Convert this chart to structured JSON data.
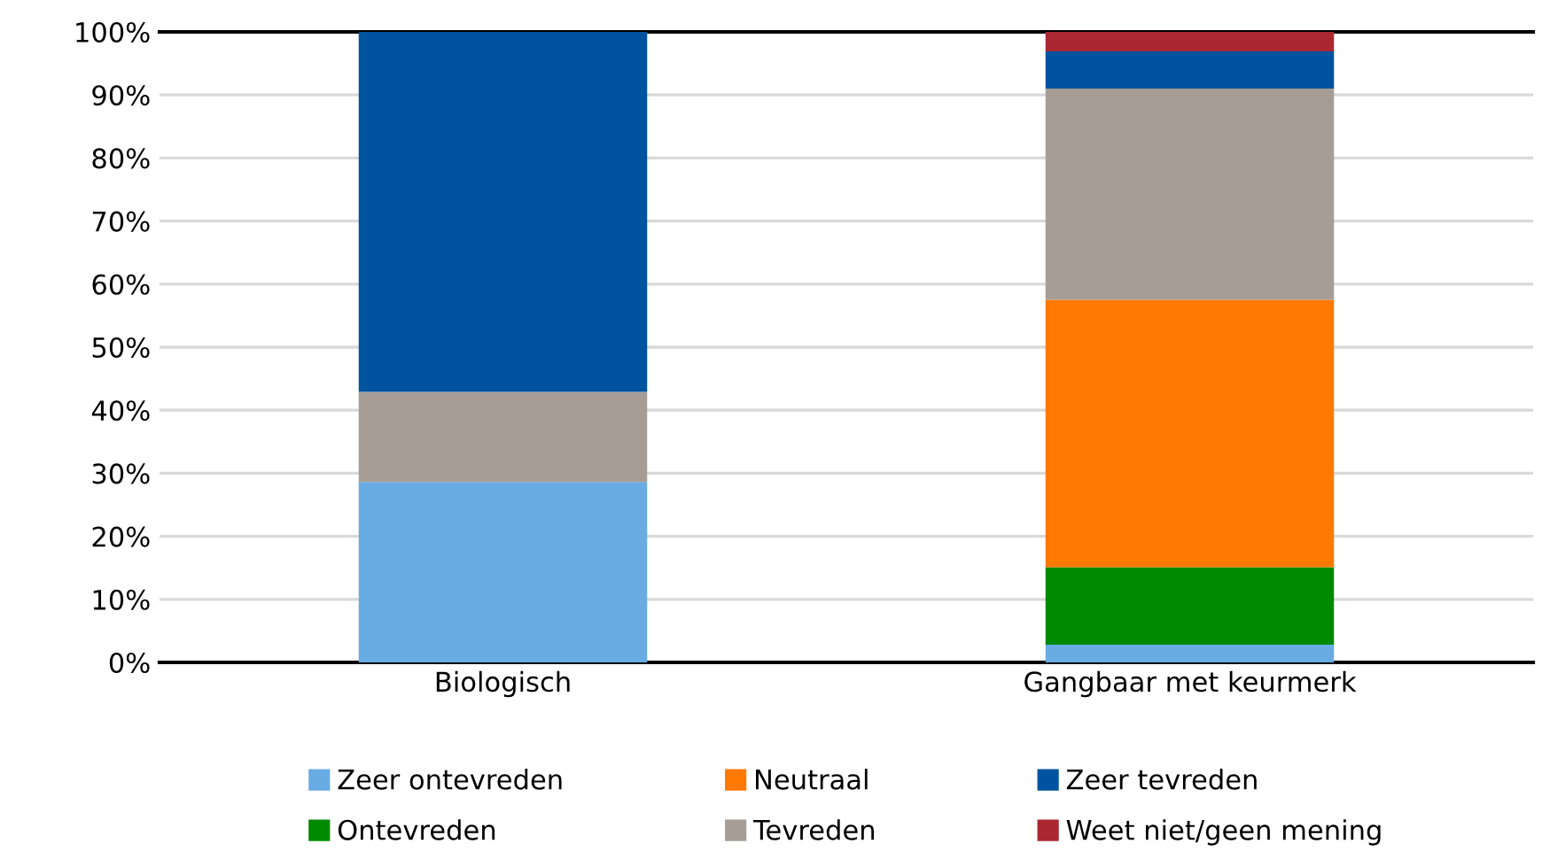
{
  "chart_data": {
    "type": "bar",
    "stacked": true,
    "categories": [
      "Biologisch",
      "Gangbaar met keurmerk"
    ],
    "series": [
      {
        "name": "Zeer ontevreden",
        "color": "#69abe3",
        "values": [
          28.6,
          2.8
        ]
      },
      {
        "name": "Ontevreden",
        "color": "#008a00",
        "values": [
          0,
          12.3
        ]
      },
      {
        "name": "Neutraal",
        "color": "#ff7900",
        "values": [
          0,
          42.4
        ]
      },
      {
        "name": "Tevreden",
        "color": "#a59d96",
        "values": [
          14.3,
          33.5
        ]
      },
      {
        "name": "Zeer tevreden",
        "color": "#00539f",
        "values": [
          57.1,
          5.9
        ]
      },
      {
        "name": "Weet niet/geen mening",
        "color": "#ab2831",
        "values": [
          0,
          3.1
        ]
      }
    ],
    "ylim": [
      0,
      100
    ],
    "yticks": [
      {
        "value": 0,
        "label": "0%"
      },
      {
        "value": 10,
        "label": "10%"
      },
      {
        "value": 20,
        "label": "20%"
      },
      {
        "value": 30,
        "label": "30%"
      },
      {
        "value": 40,
        "label": "40%"
      },
      {
        "value": 50,
        "label": "50%"
      },
      {
        "value": 60,
        "label": "60%"
      },
      {
        "value": 70,
        "label": "70%"
      },
      {
        "value": 80,
        "label": "80%"
      },
      {
        "value": 90,
        "label": "90%"
      },
      {
        "value": 100,
        "label": "100%"
      }
    ],
    "grid": "y",
    "legend": "bottom"
  }
}
